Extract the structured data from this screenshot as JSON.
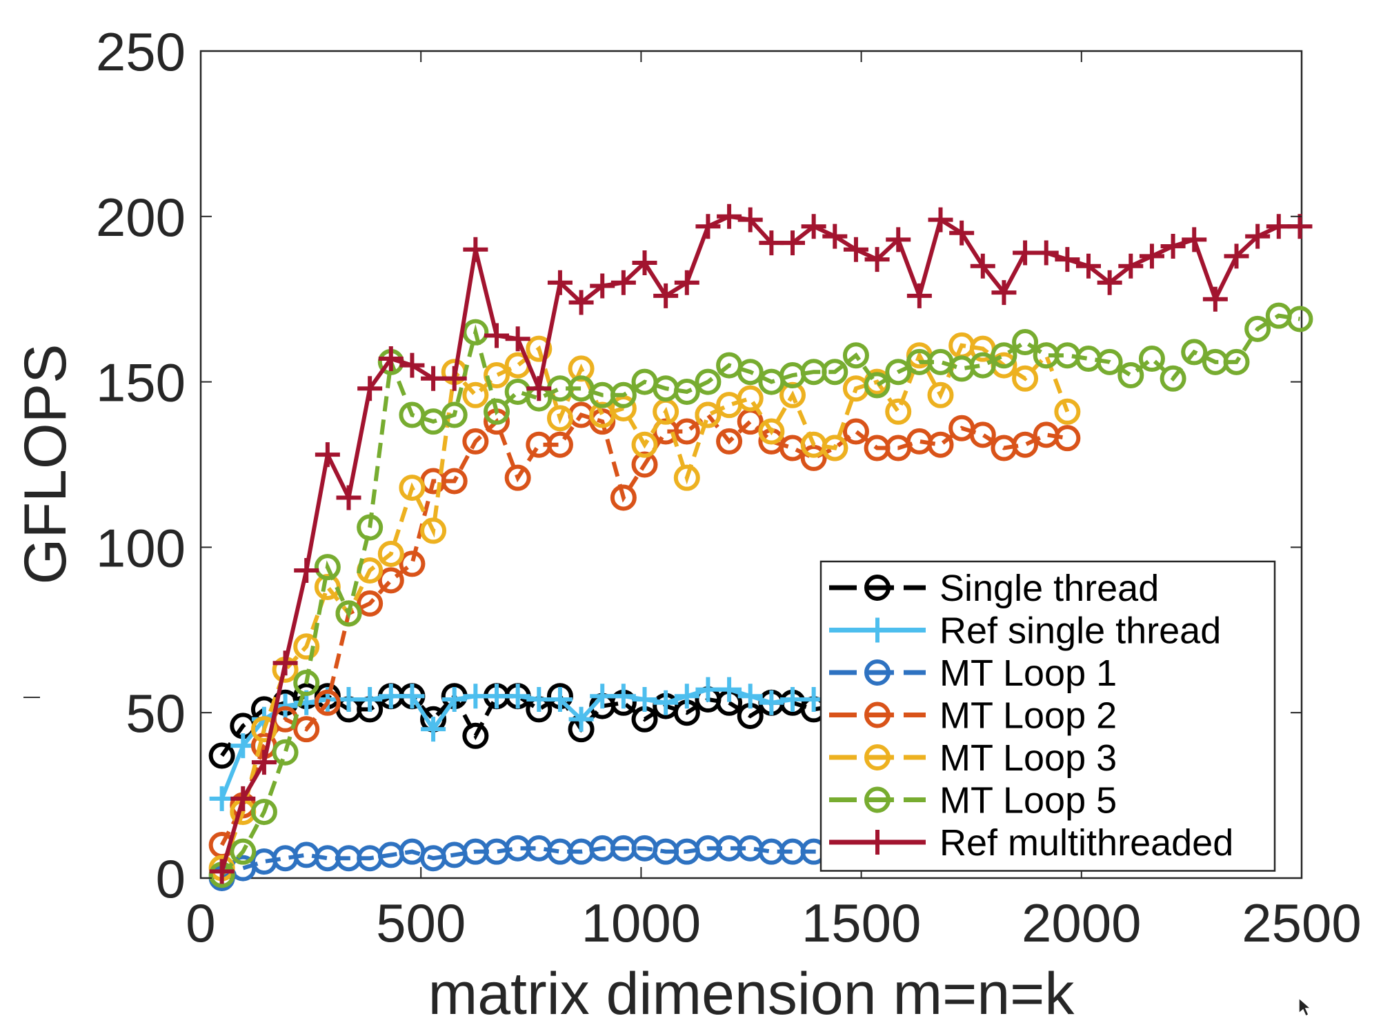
{
  "chart_data": {
    "type": "line",
    "title": "",
    "xlabel": "matrix dimension m=n=k",
    "ylabel": "GFLOPS",
    "xlim": [
      0,
      2500
    ],
    "ylim": [
      0,
      250
    ],
    "xticks": [
      0,
      500,
      1000,
      1500,
      2000,
      2500
    ],
    "yticks": [
      0,
      50,
      100,
      150,
      200,
      250
    ],
    "xtick_labels": [
      "0",
      "500",
      "1000",
      "1500",
      "2000",
      "2500"
    ],
    "ytick_labels": [
      "0",
      "50",
      "100",
      "150",
      "200",
      "250"
    ],
    "grid": false,
    "legend_position": "bottom-right (inside)",
    "series": [
      {
        "name": "Single thread",
        "color": "#000000",
        "line": "dashed",
        "marker": "circle",
        "x": [
          48,
          96,
          144,
          192,
          240,
          288,
          336,
          384,
          432,
          480,
          528,
          576,
          624,
          672,
          720,
          768,
          816,
          864,
          912,
          960,
          1008,
          1056,
          1104,
          1152,
          1200,
          1248,
          1296,
          1344,
          1392,
          1440,
          1488
        ],
        "values": [
          37,
          46,
          51,
          53,
          55,
          55,
          51,
          51,
          55,
          55,
          48,
          55,
          43,
          55,
          55,
          51,
          55,
          45,
          52,
          53,
          48,
          52,
          50,
          54,
          53,
          49,
          53,
          53,
          51,
          52,
          51
        ]
      },
      {
        "name": "Ref single thread",
        "color": "#4DBEEE",
        "line": "solid",
        "marker": "plus",
        "x": [
          48,
          96,
          144,
          192,
          240,
          288,
          336,
          384,
          432,
          480,
          528,
          576,
          624,
          672,
          720,
          768,
          816,
          864,
          912,
          960,
          1008,
          1056,
          1104,
          1152,
          1200,
          1248,
          1296,
          1344,
          1392,
          1440,
          1488
        ],
        "values": [
          24,
          40,
          48,
          52,
          53,
          54,
          54,
          54,
          55,
          55,
          45,
          54,
          55,
          55,
          55,
          54,
          54,
          48,
          55,
          55,
          54,
          53,
          55,
          57,
          57,
          55,
          53,
          54,
          54,
          54,
          54
        ]
      },
      {
        "name": "MT Loop 1",
        "color": "#2E72C1",
        "line": "dashed",
        "marker": "circle",
        "x": [
          48,
          96,
          144,
          192,
          240,
          288,
          336,
          384,
          432,
          480,
          528,
          576,
          624,
          672,
          720,
          768,
          816,
          864,
          912,
          960,
          1008,
          1056,
          1104,
          1152,
          1200,
          1248,
          1296,
          1344,
          1392,
          1440,
          1488
        ],
        "values": [
          0,
          3,
          5,
          6,
          7,
          6,
          6,
          6,
          7,
          8,
          6,
          7,
          8,
          8,
          9,
          9,
          8,
          8,
          9,
          9,
          9,
          8,
          8,
          9,
          9,
          9,
          8,
          8,
          8,
          8,
          8
        ]
      },
      {
        "name": "MT Loop 2",
        "color": "#D95319",
        "line": "dashed",
        "marker": "circle",
        "x": [
          48,
          96,
          144,
          192,
          240,
          288,
          336,
          384,
          432,
          480,
          528,
          576,
          624,
          672,
          720,
          768,
          816,
          864,
          912,
          960,
          1008,
          1056,
          1104,
          1152,
          1200,
          1248,
          1296,
          1344,
          1392,
          1440,
          1488,
          1536,
          1584,
          1632,
          1680,
          1728,
          1776,
          1824,
          1872,
          1920,
          1968
        ],
        "values": [
          10,
          22,
          40,
          48,
          45,
          53,
          80,
          83,
          90,
          95,
          120,
          120,
          132,
          138,
          121,
          131,
          131,
          140,
          138,
          115,
          125,
          135,
          135,
          140,
          132,
          138,
          132,
          130,
          127,
          130,
          135,
          130,
          130,
          132,
          131,
          136,
          134,
          130,
          131,
          134,
          133
        ]
      },
      {
        "name": "MT Loop 3",
        "color": "#EDB120",
        "line": "dashed",
        "marker": "circle",
        "x": [
          48,
          96,
          144,
          192,
          240,
          288,
          336,
          384,
          432,
          480,
          528,
          576,
          624,
          672,
          720,
          768,
          816,
          864,
          912,
          960,
          1008,
          1056,
          1104,
          1152,
          1200,
          1248,
          1296,
          1344,
          1392,
          1440,
          1488,
          1536,
          1584,
          1632,
          1680,
          1728,
          1776,
          1824,
          1872,
          1920,
          1968
        ],
        "values": [
          3,
          20,
          45,
          63,
          70,
          88,
          80,
          93,
          98,
          118,
          105,
          153,
          146,
          152,
          155,
          160,
          139,
          154,
          140,
          142,
          131,
          141,
          121,
          140,
          143,
          145,
          135,
          146,
          131,
          130,
          148,
          150,
          141,
          158,
          146,
          161,
          160,
          155,
          151,
          158,
          141
        ]
      },
      {
        "name": "MT Loop 5",
        "color": "#77AC30",
        "line": "dashed",
        "marker": "circle",
        "x": [
          48,
          96,
          144,
          192,
          240,
          288,
          336,
          384,
          432,
          480,
          528,
          576,
          624,
          672,
          720,
          768,
          816,
          864,
          912,
          960,
          1008,
          1056,
          1104,
          1152,
          1200,
          1248,
          1296,
          1344,
          1392,
          1440,
          1488,
          1536,
          1584,
          1632,
          1680,
          1728,
          1776,
          1824,
          1872,
          1920,
          1968,
          2016,
          2064,
          2112,
          2160,
          2208,
          2256,
          2304,
          2352,
          2400,
          2448,
          2496
        ],
        "values": [
          1,
          8,
          20,
          38,
          59,
          94,
          80,
          106,
          156,
          140,
          138,
          140,
          165,
          141,
          147,
          145,
          148,
          148,
          146,
          146,
          150,
          148,
          147,
          150,
          155,
          153,
          150,
          152,
          153,
          153,
          158,
          149,
          153,
          156,
          156,
          154,
          155,
          158,
          162,
          158,
          158,
          157,
          156,
          152,
          157,
          151,
          159,
          156,
          156,
          166,
          170,
          169
        ]
      },
      {
        "name": "Ref multithreaded",
        "color": "#A2142F",
        "line": "solid",
        "marker": "plus",
        "x": [
          48,
          96,
          144,
          192,
          240,
          288,
          336,
          384,
          432,
          480,
          528,
          576,
          624,
          672,
          720,
          768,
          816,
          864,
          912,
          960,
          1008,
          1056,
          1104,
          1152,
          1200,
          1248,
          1296,
          1344,
          1392,
          1440,
          1488,
          1536,
          1584,
          1632,
          1680,
          1728,
          1776,
          1824,
          1872,
          1920,
          1968,
          2016,
          2064,
          2112,
          2160,
          2208,
          2256,
          2304,
          2352,
          2400,
          2448,
          2496
        ],
        "values": [
          2,
          24,
          35,
          65,
          93,
          128,
          115,
          148,
          157,
          155,
          151,
          151,
          190,
          164,
          163,
          148,
          180,
          174,
          179,
          180,
          186,
          176,
          180,
          197,
          200,
          199,
          192,
          192,
          197,
          194,
          190,
          187,
          193,
          176,
          199,
          195,
          185,
          177,
          189,
          189,
          187,
          185,
          180,
          185,
          188,
          191,
          193,
          175,
          188,
          194,
          197,
          197
        ]
      }
    ]
  }
}
